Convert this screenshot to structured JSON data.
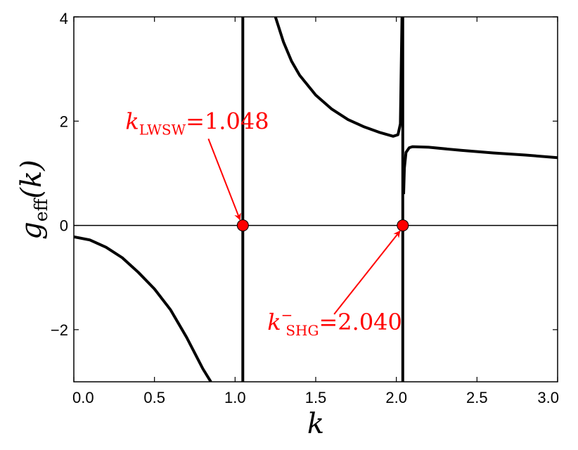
{
  "chart_data": {
    "type": "line",
    "title": "",
    "xlabel": "k",
    "ylabel": "g_eff(k)",
    "xlabel_parts": {
      "base": "k"
    },
    "ylabel_parts": {
      "base": "g",
      "sub": "eff",
      "arg": "(k)"
    },
    "xlim": [
      0.0,
      3.0
    ],
    "ylim": [
      -3,
      4
    ],
    "x_ticks": [
      "0.0",
      "0.5",
      "1.0",
      "1.5",
      "2.0",
      "2.5",
      "3.0"
    ],
    "y_ticks": [
      "−2",
      "0",
      "2",
      "4"
    ],
    "grid": false,
    "zero_line": true,
    "series": [
      {
        "segments": [
          {
            "x": [
              0.0,
              0.1,
              0.2,
              0.3,
              0.4,
              0.5,
              0.6,
              0.7,
              0.8,
              0.85
            ],
            "y": [
              -0.22,
              -0.28,
              -0.42,
              -0.62,
              -0.9,
              -1.22,
              -1.62,
              -2.15,
              -2.75,
              -3.0
            ]
          },
          {
            "x": [
              1.048,
              1.048
            ],
            "y": [
              -3.0,
              4.0
            ]
          },
          {
            "x": [
              1.25,
              1.3,
              1.35,
              1.4,
              1.5,
              1.6,
              1.7,
              1.8,
              1.9,
              1.98,
              2.01,
              2.025,
              2.035
            ],
            "y": [
              4.0,
              3.52,
              3.15,
              2.88,
              2.5,
              2.23,
              2.03,
              1.89,
              1.78,
              1.71,
              1.74,
              1.95,
              4.0
            ]
          },
          {
            "x": [
              2.04,
              2.04
            ],
            "y": [
              -3.0,
              4.0
            ]
          },
          {
            "x": [
              2.045,
              2.05,
              2.06,
              2.08,
              2.1,
              2.2,
              2.4,
              2.6,
              2.8,
              3.0
            ],
            "y": [
              0.6,
              1.1,
              1.4,
              1.49,
              1.51,
              1.5,
              1.44,
              1.39,
              1.35,
              1.3
            ]
          }
        ]
      }
    ],
    "markers": [
      {
        "x": 1.048,
        "y": 0,
        "color": "#ff0000"
      },
      {
        "x": 2.04,
        "y": 0,
        "color": "#ff0000"
      }
    ],
    "annotations": [
      {
        "k": "k",
        "sub": "LWSW",
        "sup": "",
        "eq": "=",
        "value": "1.048",
        "text_x": 0.32,
        "text_y": 1.85,
        "arrow_to": [
          1.048,
          0
        ]
      },
      {
        "k": "k",
        "sub": "SHG",
        "sup": "−",
        "eq": "=",
        "value": "2.040",
        "text_x": 1.2,
        "text_y": -2.0,
        "arrow_to": [
          2.04,
          0
        ]
      }
    ],
    "colors": {
      "line": "#000000",
      "annotation": "#ff0000"
    }
  }
}
